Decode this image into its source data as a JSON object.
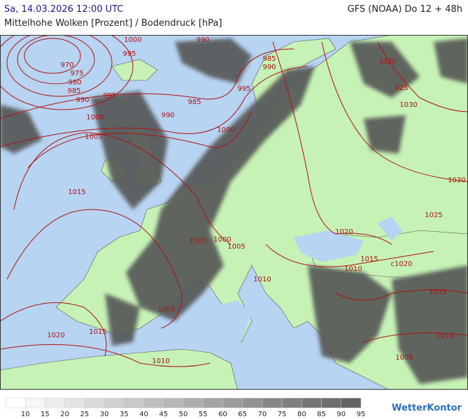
{
  "header": {
    "date": "Sa, 14.03.2026 12:00 UTC",
    "model": "GFS (NOAA) Do 12 + 48h",
    "subtitle": "Mittelhohe Wolken [Prozent] / Bodendruck [hPa]"
  },
  "map": {
    "isobar_labels": [
      "1000",
      "995",
      "970",
      "975",
      "980",
      "985",
      "990",
      "995",
      "990",
      "985",
      "1000",
      "1005",
      "1015",
      "990",
      "985",
      "990",
      "995",
      "1000",
      "1020",
      "025",
      "1030",
      "1030",
      "1025",
      "1020",
      "1015",
      "c1020",
      "1010",
      "1005",
      "1000",
      "1005",
      "1010",
      "1005",
      "1015",
      "1020",
      "1010",
      "1015",
      "1010",
      "1005"
    ]
  },
  "legend": {
    "ticks": [
      "10",
      "15",
      "20",
      "25",
      "30",
      "35",
      "40",
      "45",
      "50",
      "55",
      "60",
      "65",
      "70",
      "75",
      "80",
      "85",
      "90",
      "95"
    ]
  },
  "brand": "WetterKontor"
}
